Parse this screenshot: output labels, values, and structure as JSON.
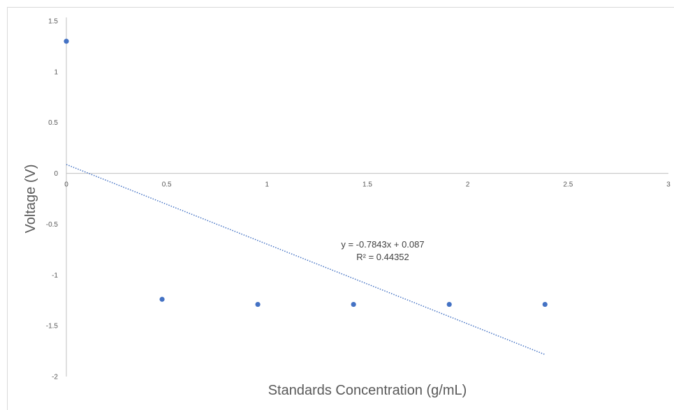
{
  "chart_data": {
    "type": "scatter",
    "title": "",
    "xlabel": "Standards Concentration (g/mL)",
    "ylabel": "Voltage (V)",
    "xlim": [
      0,
      3
    ],
    "ylim": [
      -2,
      1.5
    ],
    "x_ticks": [
      0,
      0.5,
      1,
      1.5,
      2,
      2.5,
      3
    ],
    "x_tick_labels": [
      "0",
      "0.5",
      "1",
      "1.5",
      "2",
      "2.5",
      "3"
    ],
    "y_ticks": [
      1.5,
      1,
      0.5,
      0,
      -0.5,
      -1,
      -1.5,
      -2
    ],
    "y_tick_labels": [
      "1.5",
      "1",
      "0.5",
      "0",
      "-0.5",
      "-1",
      "-1.5",
      "-2"
    ],
    "grid": false,
    "legend": "none",
    "series": [
      {
        "x": [
          0,
          0.477,
          0.954,
          1.431,
          1.908,
          2.385
        ],
        "y": [
          1.3,
          -1.24,
          -1.29,
          -1.29,
          -1.29,
          -1.29
        ],
        "color": "#4472c4"
      }
    ],
    "trendline": {
      "type": "linear",
      "slope": -0.7843,
      "intercept": 0.087,
      "x_range": [
        0,
        2.385
      ],
      "color": "#4472c4",
      "style": "dotted",
      "equation_label": "y = -0.7843x + 0.087",
      "r2_label": "R² = 0.44352"
    },
    "axis_color": "#bfbfbf"
  }
}
